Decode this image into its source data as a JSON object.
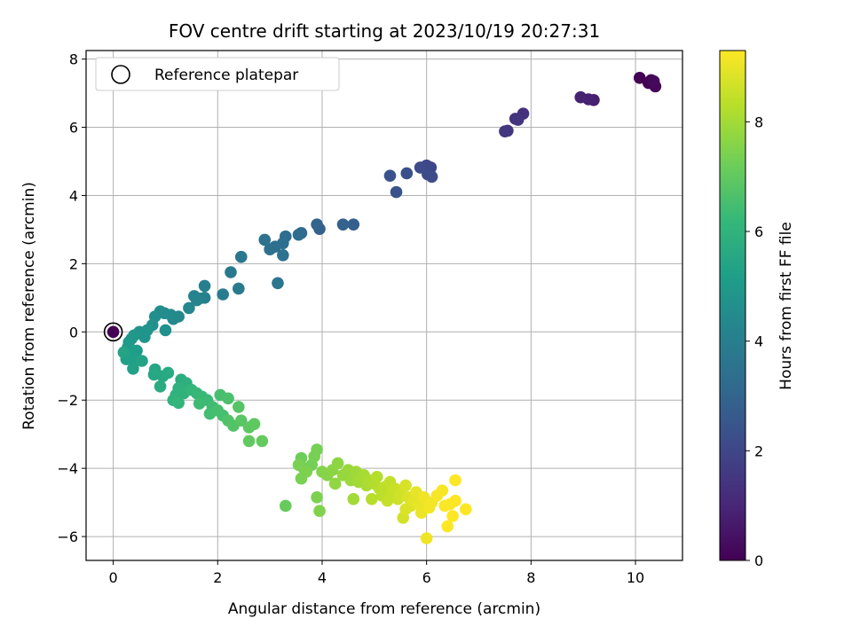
{
  "chart_data": {
    "type": "scatter",
    "title": "FOV centre drift starting at 2023/10/19 20:27:31",
    "xlabel": "Angular distance from reference (arcmin)",
    "ylabel": "Rotation from reference (arcmin)",
    "xlim": [
      -0.52,
      10.9
    ],
    "ylim": [
      -6.7,
      8.25
    ],
    "x_ticks": [
      0,
      2,
      4,
      6,
      8,
      10
    ],
    "y_ticks": [
      -6,
      -4,
      -2,
      0,
      2,
      4,
      6,
      8
    ],
    "grid": true,
    "legend": {
      "position": "top-left",
      "entries": [
        "Reference platepar"
      ]
    },
    "reference_point": {
      "x": 0,
      "y": 0,
      "hours": 0
    },
    "colorbar": {
      "label": "Hours from first FF file",
      "range": [
        0,
        9.3
      ],
      "ticks": [
        0,
        2,
        4,
        6,
        8
      ],
      "colormap": "viridis"
    },
    "points": [
      {
        "x": 10.08,
        "y": 7.45,
        "h": 0.0
      },
      {
        "x": 10.25,
        "y": 7.3,
        "h": 0.05
      },
      {
        "x": 10.3,
        "y": 7.38,
        "h": 0.1
      },
      {
        "x": 10.38,
        "y": 7.2,
        "h": 0.15
      },
      {
        "x": 10.35,
        "y": 7.35,
        "h": 0.2
      },
      {
        "x": 9.2,
        "y": 6.8,
        "h": 0.8
      },
      {
        "x": 9.1,
        "y": 6.82,
        "h": 0.85
      },
      {
        "x": 8.95,
        "y": 6.88,
        "h": 0.9
      },
      {
        "x": 7.85,
        "y": 6.4,
        "h": 1.3
      },
      {
        "x": 7.7,
        "y": 6.25,
        "h": 1.35
      },
      {
        "x": 7.75,
        "y": 6.22,
        "h": 1.4
      },
      {
        "x": 7.55,
        "y": 5.9,
        "h": 1.45
      },
      {
        "x": 7.5,
        "y": 5.88,
        "h": 1.5
      },
      {
        "x": 6.08,
        "y": 4.82,
        "h": 2.0
      },
      {
        "x": 6.0,
        "y": 4.88,
        "h": 2.05
      },
      {
        "x": 5.88,
        "y": 4.82,
        "h": 2.1
      },
      {
        "x": 6.02,
        "y": 4.62,
        "h": 2.15
      },
      {
        "x": 6.1,
        "y": 4.55,
        "h": 2.2
      },
      {
        "x": 5.62,
        "y": 4.65,
        "h": 2.3
      },
      {
        "x": 5.3,
        "y": 4.58,
        "h": 2.35
      },
      {
        "x": 5.42,
        "y": 4.1,
        "h": 2.4
      },
      {
        "x": 4.6,
        "y": 3.15,
        "h": 2.8
      },
      {
        "x": 4.4,
        "y": 3.15,
        "h": 2.85
      },
      {
        "x": 3.95,
        "y": 3.02,
        "h": 2.9
      },
      {
        "x": 3.9,
        "y": 3.15,
        "h": 2.95
      },
      {
        "x": 3.6,
        "y": 2.9,
        "h": 3.2
      },
      {
        "x": 3.55,
        "y": 2.85,
        "h": 3.25
      },
      {
        "x": 3.3,
        "y": 2.8,
        "h": 3.3
      },
      {
        "x": 3.25,
        "y": 2.6,
        "h": 3.35
      },
      {
        "x": 3.1,
        "y": 2.5,
        "h": 3.4
      },
      {
        "x": 3.0,
        "y": 2.42,
        "h": 3.45
      },
      {
        "x": 2.9,
        "y": 2.7,
        "h": 3.5
      },
      {
        "x": 3.25,
        "y": 2.25,
        "h": 3.5
      },
      {
        "x": 3.15,
        "y": 1.43,
        "h": 3.6
      },
      {
        "x": 2.45,
        "y": 2.2,
        "h": 3.7
      },
      {
        "x": 2.25,
        "y": 1.75,
        "h": 3.75
      },
      {
        "x": 2.4,
        "y": 1.27,
        "h": 3.8
      },
      {
        "x": 2.1,
        "y": 1.1,
        "h": 3.85
      },
      {
        "x": 1.75,
        "y": 1.35,
        "h": 4.0
      },
      {
        "x": 1.75,
        "y": 1.0,
        "h": 4.05
      },
      {
        "x": 1.65,
        "y": 0.98,
        "h": 4.1
      },
      {
        "x": 1.55,
        "y": 1.05,
        "h": 4.15
      },
      {
        "x": 1.6,
        "y": 0.93,
        "h": 4.2
      },
      {
        "x": 1.45,
        "y": 0.7,
        "h": 4.3
      },
      {
        "x": 1.25,
        "y": 0.45,
        "h": 4.35
      },
      {
        "x": 1.15,
        "y": 0.38,
        "h": 4.4
      },
      {
        "x": 1.1,
        "y": 0.5,
        "h": 4.45
      },
      {
        "x": 0.98,
        "y": 0.55,
        "h": 4.5
      },
      {
        "x": 0.9,
        "y": 0.6,
        "h": 4.55
      },
      {
        "x": 0.8,
        "y": 0.45,
        "h": 4.6
      },
      {
        "x": 0.75,
        "y": 0.2,
        "h": 4.65
      },
      {
        "x": 1.0,
        "y": 0.05,
        "h": 4.7
      },
      {
        "x": 0.5,
        "y": 0.0,
        "h": 4.75
      },
      {
        "x": 0.55,
        "y": -0.05,
        "h": 4.8
      },
      {
        "x": 0.65,
        "y": 0.05,
        "h": 4.8
      },
      {
        "x": 0.6,
        "y": -0.15,
        "h": 4.85
      },
      {
        "x": 0.4,
        "y": -0.1,
        "h": 4.9
      },
      {
        "x": 0.35,
        "y": -0.2,
        "h": 4.95
      },
      {
        "x": 0.3,
        "y": -0.3,
        "h": 5.0
      },
      {
        "x": 0.28,
        "y": -0.45,
        "h": 5.05
      },
      {
        "x": 0.32,
        "y": -0.55,
        "h": 5.1
      },
      {
        "x": 0.45,
        "y": -0.55,
        "h": 5.1
      },
      {
        "x": 0.35,
        "y": -0.7,
        "h": 5.15
      },
      {
        "x": 0.25,
        "y": -0.8,
        "h": 5.2
      },
      {
        "x": 0.4,
        "y": -0.9,
        "h": 5.25
      },
      {
        "x": 0.38,
        "y": -1.08,
        "h": 5.3
      },
      {
        "x": 0.55,
        "y": -0.85,
        "h": 5.35
      },
      {
        "x": 0.2,
        "y": -0.6,
        "h": 5.4
      },
      {
        "x": 0.8,
        "y": -1.1,
        "h": 5.5
      },
      {
        "x": 0.78,
        "y": -1.25,
        "h": 5.55
      },
      {
        "x": 0.95,
        "y": -1.3,
        "h": 5.6
      },
      {
        "x": 1.05,
        "y": -1.2,
        "h": 5.65
      },
      {
        "x": 0.9,
        "y": -1.6,
        "h": 5.7
      },
      {
        "x": 1.3,
        "y": -1.4,
        "h": 5.8
      },
      {
        "x": 1.4,
        "y": -1.5,
        "h": 5.85
      },
      {
        "x": 1.25,
        "y": -1.65,
        "h": 5.9
      },
      {
        "x": 1.2,
        "y": -1.85,
        "h": 5.95
      },
      {
        "x": 1.35,
        "y": -1.8,
        "h": 6.0
      },
      {
        "x": 1.15,
        "y": -2.0,
        "h": 6.05
      },
      {
        "x": 1.25,
        "y": -2.08,
        "h": 6.1
      },
      {
        "x": 1.5,
        "y": -1.7,
        "h": 6.1
      },
      {
        "x": 1.6,
        "y": -1.8,
        "h": 6.2
      },
      {
        "x": 1.7,
        "y": -1.9,
        "h": 6.25
      },
      {
        "x": 1.8,
        "y": -2.0,
        "h": 6.3
      },
      {
        "x": 1.65,
        "y": -2.1,
        "h": 6.35
      },
      {
        "x": 1.9,
        "y": -2.2,
        "h": 6.4
      },
      {
        "x": 1.85,
        "y": -2.4,
        "h": 6.45
      },
      {
        "x": 2.0,
        "y": -2.3,
        "h": 6.5
      },
      {
        "x": 2.1,
        "y": -2.45,
        "h": 6.55
      },
      {
        "x": 2.05,
        "y": -1.85,
        "h": 6.55
      },
      {
        "x": 2.2,
        "y": -1.95,
        "h": 6.6
      },
      {
        "x": 2.2,
        "y": -2.6,
        "h": 6.7
      },
      {
        "x": 2.3,
        "y": -2.75,
        "h": 6.75
      },
      {
        "x": 2.4,
        "y": -2.2,
        "h": 6.8
      },
      {
        "x": 2.45,
        "y": -2.6,
        "h": 6.85
      },
      {
        "x": 2.6,
        "y": -2.8,
        "h": 6.9
      },
      {
        "x": 2.7,
        "y": -2.7,
        "h": 6.95
      },
      {
        "x": 2.6,
        "y": -3.2,
        "h": 7.0
      },
      {
        "x": 2.85,
        "y": -3.2,
        "h": 7.05
      },
      {
        "x": 3.3,
        "y": -5.1,
        "h": 7.1
      },
      {
        "x": 3.6,
        "y": -3.7,
        "h": 7.2
      },
      {
        "x": 3.65,
        "y": -4.0,
        "h": 7.25
      },
      {
        "x": 3.8,
        "y": -3.9,
        "h": 7.3
      },
      {
        "x": 3.9,
        "y": -3.45,
        "h": 7.35
      },
      {
        "x": 3.85,
        "y": -3.65,
        "h": 7.35
      },
      {
        "x": 3.55,
        "y": -3.9,
        "h": 7.4
      },
      {
        "x": 3.6,
        "y": -4.3,
        "h": 7.4
      },
      {
        "x": 3.9,
        "y": -4.85,
        "h": 7.45
      },
      {
        "x": 3.95,
        "y": -5.25,
        "h": 7.5
      },
      {
        "x": 3.7,
        "y": -4.1,
        "h": 7.45
      },
      {
        "x": 4.0,
        "y": -4.1,
        "h": 7.55
      },
      {
        "x": 4.1,
        "y": -4.2,
        "h": 7.6
      },
      {
        "x": 4.2,
        "y": -4.05,
        "h": 7.65
      },
      {
        "x": 4.3,
        "y": -3.85,
        "h": 7.7
      },
      {
        "x": 4.25,
        "y": -4.45,
        "h": 7.75
      },
      {
        "x": 4.4,
        "y": -4.2,
        "h": 7.8
      },
      {
        "x": 4.5,
        "y": -4.05,
        "h": 7.85
      },
      {
        "x": 4.55,
        "y": -4.35,
        "h": 7.9
      },
      {
        "x": 4.65,
        "y": -4.1,
        "h": 7.95
      },
      {
        "x": 4.7,
        "y": -4.4,
        "h": 8.0
      },
      {
        "x": 4.6,
        "y": -4.9,
        "h": 8.0
      },
      {
        "x": 4.8,
        "y": -4.2,
        "h": 8.05
      },
      {
        "x": 4.85,
        "y": -4.5,
        "h": 8.1
      },
      {
        "x": 4.9,
        "y": -4.35,
        "h": 8.15
      },
      {
        "x": 5.0,
        "y": -4.45,
        "h": 8.2
      },
      {
        "x": 5.05,
        "y": -4.25,
        "h": 8.25
      },
      {
        "x": 5.1,
        "y": -4.6,
        "h": 8.3
      },
      {
        "x": 5.15,
        "y": -4.8,
        "h": 8.35
      },
      {
        "x": 5.2,
        "y": -4.55,
        "h": 8.4
      },
      {
        "x": 4.95,
        "y": -4.9,
        "h": 8.3
      },
      {
        "x": 5.3,
        "y": -4.4,
        "h": 8.45
      },
      {
        "x": 5.35,
        "y": -4.7,
        "h": 8.5
      },
      {
        "x": 5.4,
        "y": -4.6,
        "h": 8.55
      },
      {
        "x": 5.45,
        "y": -4.9,
        "h": 8.6
      },
      {
        "x": 5.5,
        "y": -4.75,
        "h": 8.65
      },
      {
        "x": 5.55,
        "y": -5.45,
        "h": 8.7
      },
      {
        "x": 5.6,
        "y": -4.5,
        "h": 8.75
      },
      {
        "x": 5.65,
        "y": -4.85,
        "h": 8.8
      },
      {
        "x": 5.7,
        "y": -5.1,
        "h": 8.85
      },
      {
        "x": 5.75,
        "y": -4.95,
        "h": 8.9
      },
      {
        "x": 5.8,
        "y": -4.7,
        "h": 8.95
      },
      {
        "x": 5.85,
        "y": -5.05,
        "h": 9.0
      },
      {
        "x": 5.9,
        "y": -5.3,
        "h": 9.05
      },
      {
        "x": 5.95,
        "y": -4.85,
        "h": 9.1
      },
      {
        "x": 6.0,
        "y": -6.05,
        "h": 9.1
      },
      {
        "x": 6.05,
        "y": -5.15,
        "h": 9.15
      },
      {
        "x": 6.1,
        "y": -5.0,
        "h": 9.15
      },
      {
        "x": 6.2,
        "y": -4.8,
        "h": 9.2
      },
      {
        "x": 6.3,
        "y": -4.65,
        "h": 9.2
      },
      {
        "x": 6.35,
        "y": -5.1,
        "h": 9.25
      },
      {
        "x": 6.45,
        "y": -5.05,
        "h": 9.25
      },
      {
        "x": 6.55,
        "y": -4.95,
        "h": 9.3
      },
      {
        "x": 6.55,
        "y": -4.35,
        "h": 9.3
      },
      {
        "x": 6.5,
        "y": -5.4,
        "h": 9.3
      },
      {
        "x": 6.4,
        "y": -5.7,
        "h": 9.3
      },
      {
        "x": 6.75,
        "y": -5.2,
        "h": 9.3
      },
      {
        "x": 5.6,
        "y": -5.2,
        "h": 8.8
      },
      {
        "x": 5.25,
        "y": -4.95,
        "h": 8.5
      }
    ]
  }
}
